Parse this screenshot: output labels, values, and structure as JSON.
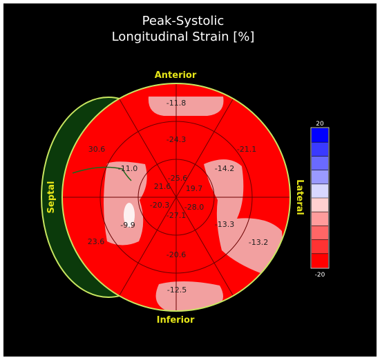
{
  "title": {
    "line1": "Peak-Systolic",
    "line2": "Longitudinal Strain [%]"
  },
  "colors": {
    "background": "#000000",
    "annotation": "#e6e619",
    "ring_outline": "#c8e660",
    "septal_lobe_fill": "#0b3a0b",
    "red": "#ff0000",
    "pale_red": "#ff8a8a",
    "pink": "#f2a0a0",
    "grid": "#6a0000"
  },
  "chart_data": {
    "type": "polar_bullseye",
    "title": "Peak-Systolic Longitudinal Strain [%]",
    "unit": "%",
    "orientation_labels": {
      "top": "Anterior",
      "bottom": "Inferior",
      "left": "Septal",
      "right": "Lateral"
    },
    "segments": [
      {
        "ring": "basal",
        "index": 0,
        "value": "-11.8"
      },
      {
        "ring": "basal",
        "index": 1,
        "value": "-21.1"
      },
      {
        "ring": "basal",
        "index": 2,
        "value": "-13.2"
      },
      {
        "ring": "basal",
        "index": 3,
        "value": "-12.5"
      },
      {
        "ring": "basal",
        "index": 4,
        "value": "23.6"
      },
      {
        "ring": "basal",
        "index": 5,
        "value": "30.6"
      },
      {
        "ring": "mid",
        "index": 0,
        "value": "-24.3"
      },
      {
        "ring": "mid",
        "index": 1,
        "value": "-14.2"
      },
      {
        "ring": "mid",
        "index": 2,
        "value": "-13.3"
      },
      {
        "ring": "mid",
        "index": 3,
        "value": "-20.6"
      },
      {
        "ring": "mid",
        "index": 4,
        "value": "-9.9"
      },
      {
        "ring": "mid",
        "index": 5,
        "value": "-11.0"
      },
      {
        "ring": "apical",
        "index": 0,
        "value": "-25.6"
      },
      {
        "ring": "apical",
        "index": 1,
        "value": "19.7"
      },
      {
        "ring": "apical",
        "index": 2,
        "value": "-28.0"
      },
      {
        "ring": "apical",
        "index": 3,
        "value": "-27.1"
      },
      {
        "ring": "apical",
        "index": 4,
        "value": "-20.3"
      },
      {
        "ring": "apical",
        "index": 5,
        "value": "21.6"
      }
    ],
    "colorbar": {
      "max_label": "20",
      "min_label": "-20",
      "range": [
        -20,
        20
      ],
      "bands": [
        "#0000ff",
        "#3a3aff",
        "#6a6aff",
        "#9a9aff",
        "#d8d8ff",
        "#ffd0d0",
        "#ff9c9c",
        "#ff6666",
        "#ff3333",
        "#ff0000"
      ]
    }
  }
}
